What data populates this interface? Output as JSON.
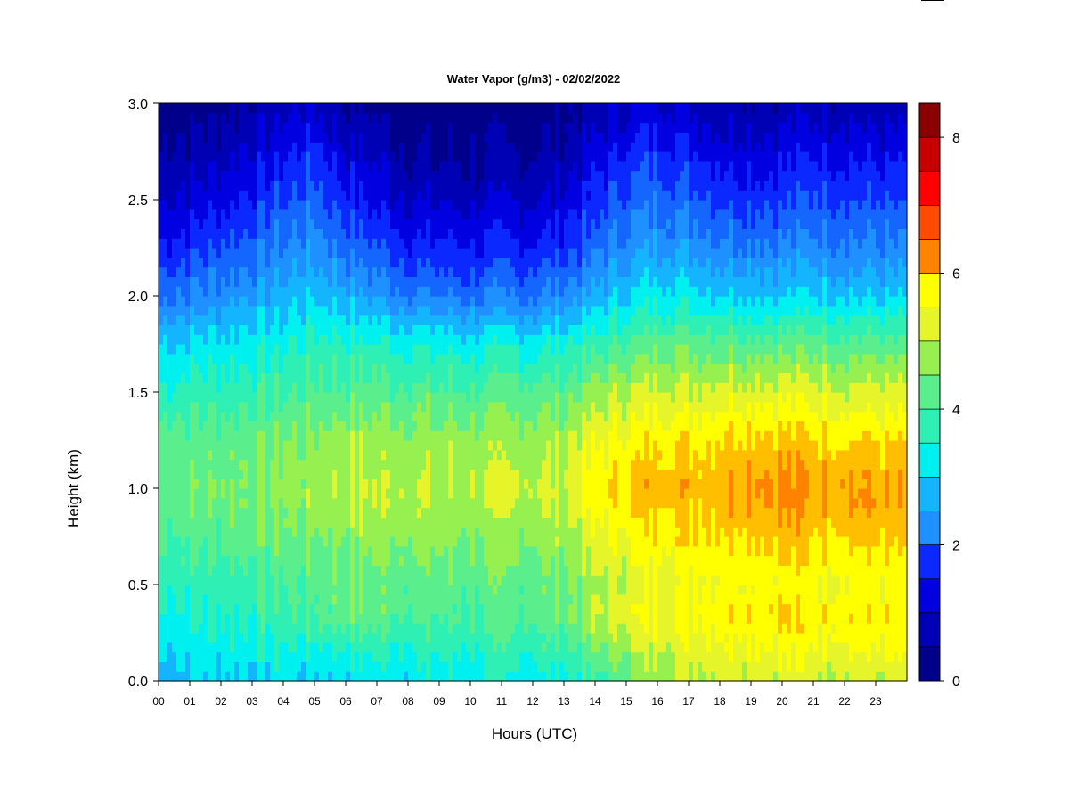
{
  "chart_data": {
    "type": "heatmap",
    "title": "Water Vapor (g/m3) - 02/02/2022",
    "xlabel": "Hours (UTC)",
    "ylabel": "Height (km)",
    "x_ticks": [
      "00",
      "01",
      "02",
      "03",
      "04",
      "05",
      "06",
      "07",
      "08",
      "09",
      "10",
      "11",
      "12",
      "13",
      "14",
      "15",
      "16",
      "17",
      "18",
      "19",
      "20",
      "21",
      "22",
      "23"
    ],
    "y_ticks": [
      "0.0",
      "0.5",
      "1.0",
      "1.5",
      "2.0",
      "2.5",
      "3.0"
    ],
    "xlim": [
      0,
      24
    ],
    "ylim": [
      0,
      3.0
    ],
    "colorbar": {
      "ticks": [
        "0",
        "2",
        "4",
        "6",
        "8"
      ],
      "range": [
        0,
        8.5
      ],
      "levels": 17,
      "colors": [
        "#00008B",
        "#0000B4",
        "#0000E0",
        "#0A28FF",
        "#1466FF",
        "#1E90FF",
        "#14B4FF",
        "#00F0F0",
        "#2EF0B4",
        "#5AEE8C",
        "#96F050",
        "#E6F52A",
        "#FFFF00",
        "#FFBE00",
        "#FF8200",
        "#FF4B00",
        "#FF0000",
        "#C80000",
        "#8B0000"
      ]
    },
    "height_km": [
      0.0,
      0.25,
      0.35,
      0.5,
      0.75,
      1.0,
      1.25,
      1.5,
      1.75,
      2.0,
      2.25,
      2.5,
      2.75,
      3.0
    ],
    "hours_utc": [
      0,
      2,
      4,
      5,
      6,
      8,
      10,
      12,
      13,
      14,
      15,
      16,
      17,
      18,
      19,
      20,
      21,
      22,
      23.8
    ],
    "values_g_m3": [
      [
        3.3,
        3.5,
        3.6,
        3.5,
        3.6,
        3.7,
        3.8,
        3.8,
        3.9,
        4.3,
        4.8,
        5.3,
        5.5,
        5.6,
        5.7,
        5.7,
        5.6,
        5.6,
        5.5
      ],
      [
        3.8,
        4.0,
        4.2,
        4.3,
        4.5,
        4.4,
        4.3,
        4.5,
        4.6,
        5.2,
        5.6,
        5.9,
        6.0,
        6.2,
        6.3,
        6.4,
        6.2,
        6.3,
        6.2
      ],
      [
        4.0,
        4.1,
        4.4,
        4.6,
        4.9,
        4.7,
        4.5,
        4.8,
        4.9,
        5.5,
        5.9,
        6.1,
        6.2,
        6.4,
        6.5,
        6.6,
        6.4,
        6.5,
        6.3
      ],
      [
        4.2,
        4.3,
        4.5,
        4.7,
        4.8,
        4.8,
        4.7,
        4.8,
        4.9,
        5.3,
        5.6,
        5.9,
        6.0,
        6.1,
        6.2,
        6.2,
        6.1,
        6.1,
        6.0
      ],
      [
        4.6,
        4.7,
        4.9,
        5.0,
        5.2,
        5.2,
        5.1,
        5.2,
        5.3,
        5.8,
        6.1,
        6.4,
        6.5,
        6.6,
        6.7,
        6.8,
        6.6,
        6.7,
        6.5
      ],
      [
        4.9,
        5.0,
        5.2,
        5.3,
        5.6,
        5.5,
        5.4,
        5.6,
        5.6,
        6.3,
        6.6,
        6.9,
        6.8,
        7.0,
        7.2,
        7.3,
        7.0,
        7.2,
        6.9
      ],
      [
        4.7,
        4.8,
        5.0,
        5.1,
        5.3,
        5.3,
        5.2,
        5.3,
        5.4,
        5.9,
        6.2,
        6.5,
        6.4,
        6.6,
        6.7,
        6.7,
        6.6,
        6.6,
        6.4
      ],
      [
        4.2,
        4.3,
        4.4,
        4.6,
        4.7,
        4.7,
        4.6,
        4.7,
        4.8,
        5.2,
        5.5,
        5.7,
        5.6,
        5.8,
        5.8,
        5.8,
        5.8,
        5.7,
        5.6
      ],
      [
        3.5,
        3.7,
        3.9,
        4.2,
        4.1,
        4.0,
        3.8,
        3.9,
        4.0,
        4.3,
        4.6,
        4.9,
        4.9,
        4.8,
        4.7,
        4.8,
        4.9,
        4.8,
        4.6
      ],
      [
        2.4,
        2.8,
        3.2,
        3.5,
        3.2,
        2.6,
        2.4,
        2.5,
        2.7,
        3.1,
        3.5,
        3.8,
        3.7,
        3.6,
        3.5,
        3.5,
        3.6,
        3.5,
        3.4
      ],
      [
        1.6,
        2.0,
        2.6,
        2.9,
        2.4,
        1.7,
        1.5,
        1.6,
        1.8,
        2.3,
        2.8,
        3.0,
        2.9,
        2.7,
        2.6,
        2.6,
        2.8,
        2.7,
        2.6
      ],
      [
        0.9,
        1.4,
        2.0,
        2.3,
        1.7,
        1.0,
        0.9,
        1.0,
        1.2,
        1.7,
        2.2,
        2.4,
        2.2,
        2.0,
        1.9,
        1.9,
        2.1,
        2.0,
        1.9
      ],
      [
        0.5,
        0.8,
        1.4,
        1.7,
        1.1,
        0.5,
        0.4,
        0.5,
        0.7,
        1.2,
        1.6,
        1.8,
        1.6,
        1.3,
        1.2,
        1.3,
        1.5,
        1.4,
        1.3
      ],
      [
        0.2,
        0.4,
        0.8,
        1.0,
        0.5,
        0.2,
        0.1,
        0.2,
        0.3,
        0.6,
        0.9,
        1.1,
        0.9,
        0.7,
        0.6,
        0.7,
        0.8,
        0.7,
        0.6
      ]
    ]
  }
}
